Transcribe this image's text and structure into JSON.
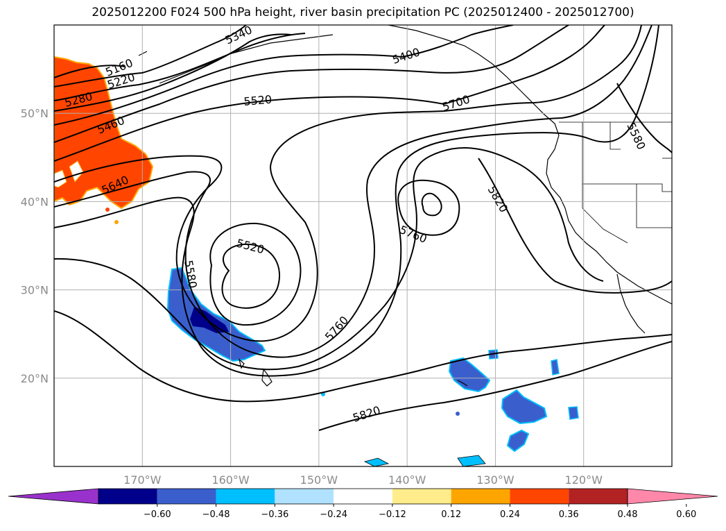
{
  "title": "2025012200 F024 500 hPa height, river basin precipitation PC (2025012400 - 2025012700)",
  "map": {
    "lon_range": [
      -180,
      -110
    ],
    "lat_range": [
      10,
      60
    ],
    "lat_ticks": [
      {
        "lat": 50,
        "label": "50°N"
      },
      {
        "lat": 40,
        "label": "40°N"
      },
      {
        "lat": 30,
        "label": "30°N"
      },
      {
        "lat": 20,
        "label": "20°N"
      }
    ],
    "lon_ticks": [
      {
        "lon": -170,
        "label": "170°W"
      },
      {
        "lon": -160,
        "label": "160°W"
      },
      {
        "lon": -150,
        "label": "150°W"
      },
      {
        "lon": -140,
        "label": "140°W"
      },
      {
        "lon": -130,
        "label": "130°W"
      },
      {
        "lon": -120,
        "label": "120°W"
      }
    ],
    "contour_labels": [
      "5160",
      "5220",
      "5280",
      "5340",
      "5400",
      "5460",
      "5520",
      "5520",
      "5580",
      "5580",
      "5640",
      "5700",
      "5760",
      "5760",
      "5820",
      "5820"
    ]
  },
  "colorbar": {
    "colors": [
      "#9932cc",
      "#00008b",
      "#3a5fcd",
      "#00bfff",
      "#b0e2ff",
      "#ffffff",
      "#ffec8b",
      "#ffa500",
      "#ff4500",
      "#b22222",
      "#ff88aa"
    ],
    "tick_labels": [
      "−0.60",
      "−0.48",
      "−0.36",
      "−0.24",
      "−0.12",
      "0.12",
      "0.24",
      "0.36",
      "0.48",
      "0.60"
    ]
  },
  "colors": {
    "contour": "#000000",
    "positive_region": "#ff4500",
    "negative_region": "#3a5fcd",
    "strong_negative": "#00008b",
    "grid": "#b0b0b0"
  }
}
